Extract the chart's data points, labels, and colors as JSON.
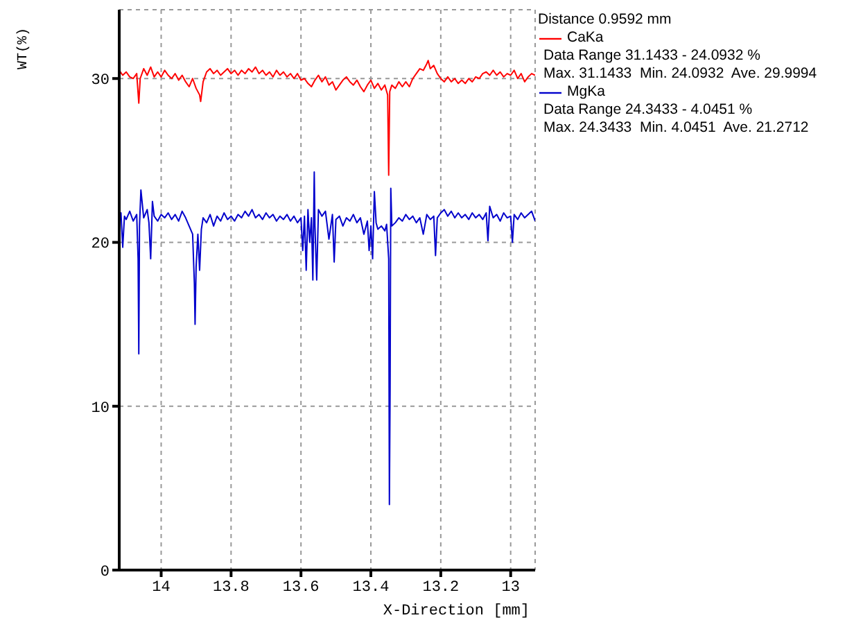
{
  "chart_data": {
    "type": "line",
    "xlabel": "X-Direction  [mm]",
    "ylabel": "WT(%)",
    "legend_title": "Distance 0.9592 mm",
    "annotations": [
      "Data Range 31.1433 - 24.0932 %",
      "Max. 31.1433  Min. 24.0932  Ave. 29.9994",
      "Data Range 24.3433 - 4.0451 %",
      "Max. 24.3433  Min. 4.0451  Ave. 21.2712"
    ],
    "xlim": [
      14.12,
      12.93
    ],
    "xticks": [
      14,
      13.8,
      13.6,
      13.4,
      13.2,
      13
    ],
    "ylim": [
      0,
      34.2
    ],
    "yticks": [
      0,
      10,
      20,
      30
    ],
    "grid": true,
    "legend": "right",
    "marker": "none",
    "line_style": "solid",
    "series": [
      {
        "name": "CaKa",
        "color": "#ff0000",
        "x": [
          14.12,
          14.11,
          14.1,
          14.09,
          14.08,
          14.07,
          14.064,
          14.06,
          14.05,
          14.04,
          14.03,
          14.02,
          14.01,
          14.0,
          13.99,
          13.98,
          13.97,
          13.96,
          13.95,
          13.94,
          13.93,
          13.92,
          13.91,
          13.9,
          13.89,
          13.887,
          13.88,
          13.87,
          13.86,
          13.85,
          13.84,
          13.83,
          13.82,
          13.81,
          13.8,
          13.79,
          13.78,
          13.77,
          13.76,
          13.75,
          13.74,
          13.73,
          13.72,
          13.71,
          13.7,
          13.69,
          13.68,
          13.67,
          13.66,
          13.65,
          13.64,
          13.63,
          13.62,
          13.61,
          13.6,
          13.59,
          13.58,
          13.57,
          13.56,
          13.55,
          13.54,
          13.53,
          13.52,
          13.51,
          13.5,
          13.49,
          13.48,
          13.47,
          13.46,
          13.45,
          13.44,
          13.43,
          13.42,
          13.41,
          13.4,
          13.39,
          13.38,
          13.37,
          13.36,
          13.352,
          13.349,
          13.346,
          13.34,
          13.33,
          13.32,
          13.31,
          13.3,
          13.29,
          13.28,
          13.27,
          13.26,
          13.25,
          13.24,
          13.236,
          13.23,
          13.22,
          13.21,
          13.2,
          13.19,
          13.18,
          13.17,
          13.16,
          13.15,
          13.14,
          13.13,
          13.12,
          13.11,
          13.1,
          13.09,
          13.08,
          13.07,
          13.06,
          13.05,
          13.04,
          13.03,
          13.02,
          13.01,
          13.0,
          12.99,
          12.98,
          12.97,
          12.96,
          12.95,
          12.94,
          12.93
        ],
        "values": [
          30.5,
          30.2,
          30.4,
          30.1,
          30.0,
          30.3,
          28.5,
          30.0,
          30.6,
          30.2,
          30.7,
          30.1,
          30.4,
          30.1,
          30.5,
          30.2,
          30.0,
          30.3,
          29.9,
          30.2,
          29.8,
          29.5,
          30.0,
          29.4,
          29.0,
          28.6,
          29.8,
          30.4,
          30.6,
          30.3,
          30.5,
          30.2,
          30.4,
          30.6,
          30.3,
          30.5,
          30.2,
          30.5,
          30.3,
          30.6,
          30.4,
          30.7,
          30.3,
          30.5,
          30.2,
          30.4,
          30.1,
          30.5,
          30.2,
          30.4,
          30.1,
          30.3,
          30.0,
          30.3,
          29.9,
          30.0,
          29.7,
          29.5,
          29.9,
          30.2,
          29.8,
          30.1,
          29.6,
          29.8,
          29.3,
          29.6,
          29.9,
          30.1,
          29.8,
          29.6,
          29.9,
          29.5,
          29.2,
          29.6,
          29.9,
          29.4,
          29.7,
          29.3,
          29.6,
          29.0,
          24.1,
          29.2,
          29.6,
          29.4,
          29.8,
          29.5,
          29.8,
          29.5,
          30.0,
          30.3,
          30.6,
          30.5,
          30.9,
          31.1,
          30.6,
          30.8,
          30.3,
          30.0,
          29.8,
          30.1,
          29.8,
          30.0,
          29.7,
          29.9,
          29.7,
          30.0,
          29.8,
          30.1,
          30.0,
          30.3,
          30.4,
          30.2,
          30.5,
          30.2,
          30.4,
          30.1,
          30.3,
          30.2,
          30.5,
          30.0,
          30.3,
          29.8,
          30.1,
          30.3,
          30.2
        ]
      },
      {
        "name": "MgKa",
        "color": "#0000cc",
        "x": [
          14.12,
          14.115,
          14.11,
          14.105,
          14.1,
          14.09,
          14.08,
          14.07,
          14.066,
          14.064,
          14.062,
          14.058,
          14.05,
          14.04,
          14.035,
          14.03,
          14.025,
          14.02,
          14.01,
          14.0,
          13.99,
          13.98,
          13.97,
          13.96,
          13.95,
          13.94,
          13.93,
          13.92,
          13.91,
          13.905,
          13.903,
          13.9,
          13.895,
          13.89,
          13.885,
          13.88,
          13.87,
          13.86,
          13.85,
          13.84,
          13.83,
          13.82,
          13.81,
          13.8,
          13.79,
          13.78,
          13.77,
          13.76,
          13.75,
          13.74,
          13.73,
          13.72,
          13.71,
          13.7,
          13.69,
          13.68,
          13.67,
          13.66,
          13.65,
          13.64,
          13.63,
          13.62,
          13.61,
          13.6,
          13.595,
          13.59,
          13.585,
          13.58,
          13.575,
          13.57,
          13.566,
          13.562,
          13.56,
          13.555,
          13.55,
          13.54,
          13.53,
          13.52,
          13.51,
          13.505,
          13.5,
          13.49,
          13.48,
          13.47,
          13.46,
          13.45,
          13.44,
          13.43,
          13.42,
          13.41,
          13.405,
          13.4,
          13.395,
          13.39,
          13.385,
          13.38,
          13.37,
          13.36,
          13.355,
          13.349,
          13.347,
          13.345,
          13.343,
          13.34,
          13.33,
          13.32,
          13.31,
          13.3,
          13.29,
          13.28,
          13.27,
          13.26,
          13.25,
          13.24,
          13.23,
          13.22,
          13.215,
          13.21,
          13.2,
          13.19,
          13.18,
          13.17,
          13.16,
          13.15,
          13.14,
          13.13,
          13.12,
          13.11,
          13.1,
          13.09,
          13.08,
          13.07,
          13.065,
          13.06,
          13.05,
          13.04,
          13.03,
          13.02,
          13.01,
          13.0,
          12.995,
          12.99,
          12.98,
          12.97,
          12.96,
          12.95,
          12.94,
          12.93
        ],
        "values": [
          21.5,
          21.8,
          19.7,
          21.6,
          21.4,
          21.9,
          21.3,
          21.7,
          19.0,
          13.2,
          21.0,
          23.2,
          21.5,
          22.0,
          21.2,
          19.0,
          22.5,
          21.6,
          21.3,
          21.7,
          21.5,
          21.8,
          21.4,
          21.7,
          21.3,
          21.9,
          21.5,
          21.0,
          20.5,
          17.5,
          15.0,
          18.5,
          20.5,
          18.3,
          20.8,
          21.5,
          21.2,
          21.7,
          21.0,
          21.6,
          21.3,
          21.8,
          21.4,
          21.6,
          21.3,
          21.7,
          21.5,
          21.9,
          21.6,
          22.0,
          21.5,
          21.7,
          21.4,
          21.8,
          21.5,
          21.7,
          21.3,
          21.6,
          21.4,
          21.7,
          21.3,
          21.6,
          21.2,
          21.5,
          19.5,
          21.6,
          18.3,
          22.0,
          20.0,
          21.5,
          17.7,
          24.3,
          21.0,
          17.7,
          22.0,
          21.6,
          21.9,
          20.2,
          21.7,
          18.8,
          21.4,
          21.6,
          21.0,
          21.5,
          21.3,
          21.7,
          21.2,
          21.5,
          20.5,
          21.3,
          19.5,
          21.0,
          19.0,
          23.1,
          21.2,
          20.8,
          21.0,
          20.7,
          21.1,
          19.0,
          4.0,
          11.0,
          23.3,
          21.0,
          21.2,
          21.5,
          21.3,
          21.7,
          21.4,
          21.6,
          21.2,
          21.5,
          20.5,
          21.7,
          21.4,
          21.6,
          19.2,
          21.5,
          21.8,
          22.0,
          21.6,
          21.9,
          21.5,
          21.8,
          21.5,
          21.7,
          21.4,
          21.8,
          21.5,
          21.7,
          21.4,
          21.8,
          20.1,
          22.2,
          21.5,
          21.7,
          21.3,
          21.8,
          21.5,
          21.6,
          20.0,
          21.7,
          21.4,
          21.8,
          21.5,
          21.7,
          21.9,
          21.3
        ]
      }
    ]
  }
}
